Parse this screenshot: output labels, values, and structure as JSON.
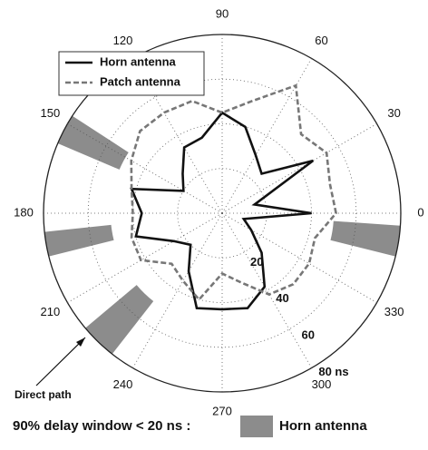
{
  "chart_data": {
    "type": "polar",
    "theta": [
      0,
      15,
      30,
      45,
      60,
      75,
      90,
      105,
      120,
      135,
      150,
      165,
      180,
      195,
      210,
      225,
      240,
      255,
      270,
      285,
      300,
      315,
      330,
      345
    ],
    "series": [
      {
        "name": "Horn antenna",
        "color": "#111111",
        "dash": false,
        "values": [
          40,
          15,
          47,
          25,
          30,
          40,
          45,
          35,
          34,
          25,
          20,
          42,
          36,
          40,
          25,
          20,
          30,
          44,
          43,
          44,
          38,
          25,
          15,
          10
        ]
      },
      {
        "name": "Patch antenna",
        "color": "#777777",
        "dash": true,
        "values": [
          51,
          50,
          54,
          50,
          66,
          52,
          45,
          52,
          52,
          52,
          47,
          42,
          40,
          42,
          42,
          32,
          35,
          40,
          27,
          32,
          42,
          45,
          45,
          43
        ]
      }
    ],
    "rlim": [
      0,
      80
    ],
    "rticks": [
      20,
      40,
      60,
      {
        "value": 80,
        "label": "80 ns"
      }
    ],
    "thetaticks": [
      0,
      30,
      60,
      90,
      120,
      150,
      180,
      210,
      240,
      270,
      300,
      330
    ],
    "shaded_sectors": [
      {
        "start": 147,
        "end": 157,
        "r": [
          50,
          80
        ]
      },
      {
        "start": 186,
        "end": 194,
        "r": [
          50,
          80
        ]
      },
      {
        "start": 220,
        "end": 232,
        "r": [
          50,
          80
        ]
      },
      {
        "start": 346,
        "end": 356,
        "r": [
          50,
          80
        ]
      }
    ],
    "shade_color": "#8c8c8c",
    "annotation": "Direct path",
    "footer": {
      "text": "90% delay window < 20 ns :",
      "legend": "Horn antenna"
    }
  }
}
